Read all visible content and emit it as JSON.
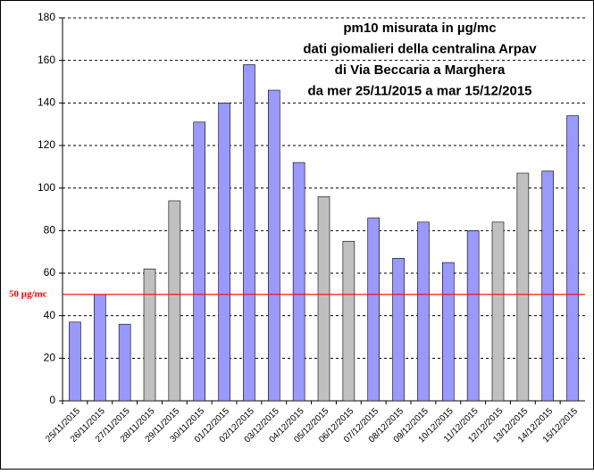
{
  "chart_data": {
    "type": "bar",
    "title": [
      "pm10 misurata in µg/mc",
      "dati giomalieri della centralina Arpav",
      "di Via Beccaria a Marghera",
      "da mer 25/11/2015 a mar 15/12/2015"
    ],
    "categories": [
      "25/11/2015",
      "26/11/2015",
      "27/11/2015",
      "28/11/2015",
      "29/11/2015",
      "30/11/2015",
      "01/12/2015",
      "02/12/2015",
      "03/12/2015",
      "04/12/2015",
      "05/12/2015",
      "06/12/2015",
      "07/12/2015",
      "08/12/2015",
      "09/12/2015",
      "10/12/2015",
      "11/12/2015",
      "12/12/2015",
      "13/12/2015",
      "14/12/2015",
      "15/12/2015"
    ],
    "values": [
      37,
      50,
      36,
      62,
      94,
      131,
      140,
      158,
      146,
      112,
      96,
      75,
      86,
      67,
      84,
      65,
      80,
      84,
      107,
      108,
      134
    ],
    "colors": [
      "#9999ff",
      "#9999ff",
      "#9999ff",
      "#c0c0c0",
      "#c0c0c0",
      "#9999ff",
      "#9999ff",
      "#9999ff",
      "#9999ff",
      "#9999ff",
      "#c0c0c0",
      "#c0c0c0",
      "#9999ff",
      "#9999ff",
      "#9999ff",
      "#9999ff",
      "#9999ff",
      "#c0c0c0",
      "#c0c0c0",
      "#9999ff",
      "#9999ff"
    ],
    "threshold": {
      "value": 50,
      "label": "50 µg/mc",
      "color": "#ff0000"
    },
    "ylim": [
      0,
      180
    ],
    "yticks": [
      0,
      20,
      40,
      60,
      80,
      100,
      120,
      140,
      160,
      180
    ],
    "grid": true
  }
}
